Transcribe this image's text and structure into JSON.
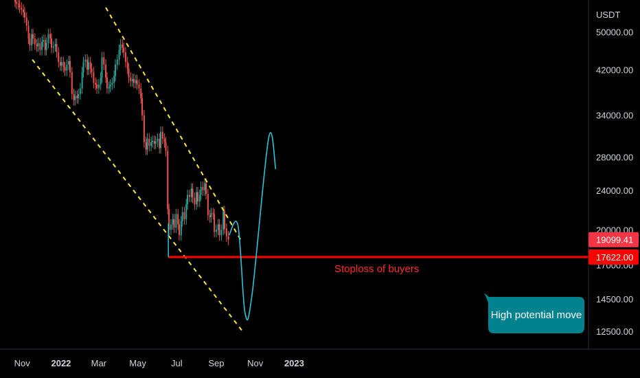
{
  "chart_data": {
    "type": "candlestick",
    "currency_label": "USDT",
    "y_scale": "log",
    "ylim": [
      11500,
      58000
    ],
    "y_ticks": [
      "50000.00",
      "42000.00",
      "34000.00",
      "28000.00",
      "24000.00",
      "20000.00",
      "17000.00",
      "14500.00",
      "12500.00"
    ],
    "x_ticks": [
      {
        "label": "Nov",
        "bold": false
      },
      {
        "label": "2022",
        "bold": true
      },
      {
        "label": "Mar",
        "bold": false
      },
      {
        "label": "May",
        "bold": false
      },
      {
        "label": "Jul",
        "bold": false
      },
      {
        "label": "Sep",
        "bold": false
      },
      {
        "label": "Nov",
        "bold": false
      },
      {
        "label": "2023",
        "bold": true
      }
    ],
    "price_tags": [
      {
        "value": 19099.41,
        "label": "19099.41",
        "color": "#f23645"
      },
      {
        "value": 17622,
        "label": "17622.00",
        "color": "#ff0000"
      }
    ],
    "candles_close": [
      57500,
      57000,
      56800,
      56000,
      55500,
      54800,
      53500,
      51500,
      48500,
      47000,
      49500,
      48500,
      47200,
      46800,
      47500,
      46000,
      47800,
      48200,
      46000,
      47500,
      49500,
      48500,
      46500,
      46800,
      47300,
      45500,
      43500,
      42800,
      43500,
      42500,
      41800,
      43000,
      43700,
      41500,
      37500,
      36500,
      37200,
      36800,
      37500,
      38500,
      41500,
      43500,
      44000,
      42000,
      43500,
      42200,
      41500,
      39500,
      39200,
      38500,
      39200,
      40500,
      44500,
      43000,
      40500,
      38500,
      38800,
      39200,
      39500,
      40800,
      43000,
      44000,
      46000,
      47200,
      46500,
      45500,
      43500,
      42200,
      40500,
      39800,
      40200,
      39500,
      40000,
      39200,
      38500,
      36800,
      34000,
      30000,
      29000,
      30500,
      29500,
      30000,
      30200,
      29800,
      30100,
      30500,
      29200,
      31500,
      30500,
      30000,
      28800,
      22000,
      20000,
      20500,
      21000,
      20200,
      21500,
      20500,
      19500,
      20800,
      21700,
      21000,
      22500,
      23500,
      23300,
      24200,
      23200,
      22500,
      23800,
      22800,
      23500,
      24400,
      24000,
      24800,
      23600,
      21400,
      21200,
      21600,
      21500,
      19800,
      20000,
      20500,
      19500,
      20000,
      21800,
      20100,
      19400,
      19100
    ],
    "candles_range": [
      "2021-10-21",
      "2022-09-20"
    ],
    "channel_upper": [
      [
        "2022-03-12",
        56000
      ],
      [
        "2022-10-10",
        19000
      ]
    ],
    "channel_lower": [
      [
        "2021-11-17",
        44000
      ],
      [
        "2022-10-14",
        12400
      ]
    ],
    "support_level": 17622,
    "projection_path": [
      [
        "2022-09-21",
        19500
      ],
      [
        "2022-10-05",
        20400
      ],
      [
        "2022-10-16",
        13600
      ],
      [
        "2022-10-27",
        14800
      ],
      [
        "2022-11-22",
        30600
      ],
      [
        "2022-12-03",
        26500
      ]
    ],
    "annotations": {
      "support_label": "Stoploss of buyers",
      "callout": "High potential move"
    },
    "colors": {
      "up": "#26a69a",
      "down": "#ef5350",
      "channel": "#ffeb3b",
      "support": "#ff0000",
      "projection": "#2ec4d6",
      "callout_bg": "#00838f",
      "axis_bg": "#000000"
    },
    "grid": false
  }
}
